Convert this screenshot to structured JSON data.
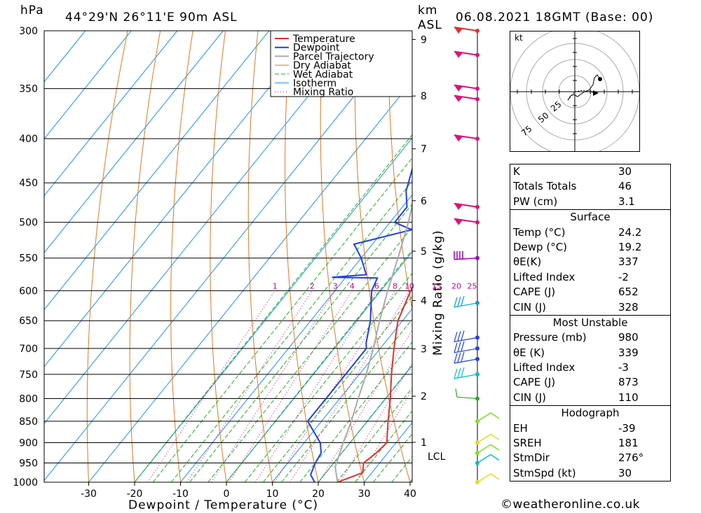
{
  "header": {
    "unit_left": "hPa",
    "location": "44°29'N  26°11'E  90m  ASL",
    "unit_right_1": "km",
    "unit_right_2": "ASL",
    "datetime": "06.08.2021  18GMT  (Base: 00)"
  },
  "chart_data": {
    "type": "line",
    "xlabel": "Dewpoint / Temperature (°C)",
    "ylabel_right": "Mixing Ratio (g/kg)",
    "x_ticks": [
      -30,
      -20,
      -10,
      0,
      10,
      20,
      30,
      40
    ],
    "pressure_ticks": [
      300,
      350,
      400,
      450,
      500,
      550,
      600,
      650,
      700,
      750,
      800,
      850,
      900,
      950,
      1000
    ],
    "height_ticks_km": [
      "9",
      "8",
      "7",
      "6",
      "5",
      "4",
      "3",
      "2",
      "1"
    ],
    "lcl_label": "LCL",
    "mixing_ratio_labels": [
      "1",
      "2",
      "3",
      "4",
      "6",
      "8",
      "10",
      "15",
      "20",
      "25"
    ],
    "legend": [
      "Temperature",
      "Dewpoint",
      "Parcel Trajectory",
      "Dry Adiabat",
      "Wet Adiabat",
      "Isotherm",
      "Mixing Ratio"
    ],
    "colors": {
      "temperature": "#e03030",
      "dewpoint": "#2040e0",
      "parcel": "#aaaaaa",
      "dry_adiabat": "#e07820",
      "wet_adiabat": "#20b020",
      "isotherm": "#1e90ff",
      "mixing_ratio": "#cc0099"
    },
    "series": [
      {
        "name": "Temperature",
        "points": [
          [
            1000,
            24.2
          ],
          [
            975,
            28
          ],
          [
            950,
            26.5
          ],
          [
            925,
            27.5
          ],
          [
            900,
            28
          ],
          [
            850,
            24.5
          ],
          [
            800,
            21
          ],
          [
            750,
            17
          ],
          [
            700,
            13
          ],
          [
            650,
            9
          ],
          [
            600,
            6.5
          ],
          [
            580,
            5.5
          ],
          [
            560,
            5
          ],
          [
            540,
            4
          ],
          [
            520,
            2.5
          ],
          [
            500,
            0.5
          ],
          [
            480,
            -1
          ],
          [
            460,
            -3
          ],
          [
            440,
            -6
          ],
          [
            420,
            -9.5
          ],
          [
            400,
            -12.5
          ],
          [
            350,
            -21
          ],
          [
            300,
            -31
          ]
        ]
      },
      {
        "name": "Dewpoint",
        "points": [
          [
            1000,
            19.2
          ],
          [
            980,
            17
          ],
          [
            950,
            16
          ],
          [
            925,
            15.5
          ],
          [
            900,
            13.5
          ],
          [
            850,
            7
          ],
          [
            800,
            7
          ],
          [
            750,
            7
          ],
          [
            700,
            7
          ],
          [
            690,
            6
          ],
          [
            650,
            3
          ],
          [
            600,
            -2
          ],
          [
            580,
            -3
          ],
          [
            579,
            -13
          ],
          [
            575,
            -6
          ],
          [
            550,
            -10
          ],
          [
            530,
            -14
          ],
          [
            510,
            -4
          ],
          [
            500,
            -9
          ],
          [
            480,
            -9
          ],
          [
            460,
            -12
          ],
          [
            400,
            -18
          ],
          [
            370,
            -21.5
          ],
          [
            350,
            -25
          ],
          [
            320,
            -28
          ],
          [
            310,
            -30
          ],
          [
            300,
            -28
          ]
        ]
      },
      {
        "name": "Parcel Trajectory",
        "points": [
          [
            1000,
            24.2
          ],
          [
            960,
            21
          ],
          [
            900,
            18.5
          ],
          [
            850,
            16.5
          ],
          [
            800,
            14
          ],
          [
            750,
            11.5
          ],
          [
            700,
            8.5
          ],
          [
            650,
            5
          ],
          [
            600,
            1.5
          ],
          [
            550,
            -2
          ],
          [
            500,
            -6
          ],
          [
            450,
            -11
          ],
          [
            400,
            -17
          ],
          [
            350,
            -24.5
          ],
          [
            300,
            -34
          ]
        ]
      }
    ],
    "wind_barbs_pressure": [
      300,
      320,
      350,
      360,
      400,
      480,
      500,
      550,
      620,
      680,
      700,
      720,
      750,
      800,
      850,
      900,
      925,
      950,
      1000
    ]
  },
  "hodograph": {
    "unit": "kt",
    "ring_labels": [
      "25",
      "50",
      "75"
    ]
  },
  "indices": [
    {
      "label": "K",
      "value": "30"
    },
    {
      "label": "Totals Totals",
      "value": "46"
    },
    {
      "label": "PW (cm)",
      "value": "3.1"
    }
  ],
  "surface": {
    "title": "Surface",
    "rows": [
      {
        "label": "Temp (°C)",
        "value": "24.2"
      },
      {
        "label": "Dewp (°C)",
        "value": "19.2"
      },
      {
        "label": "θE(K)",
        "value": "337"
      },
      {
        "label": "Lifted Index",
        "value": "-2"
      },
      {
        "label": "CAPE (J)",
        "value": "652"
      },
      {
        "label": "CIN (J)",
        "value": "328"
      }
    ]
  },
  "most_unstable": {
    "title": "Most Unstable",
    "rows": [
      {
        "label": "Pressure (mb)",
        "value": "980"
      },
      {
        "label": "θE (K)",
        "value": "339"
      },
      {
        "label": "Lifted Index",
        "value": "-3"
      },
      {
        "label": "CAPE (J)",
        "value": "873"
      },
      {
        "label": "CIN (J)",
        "value": "110"
      }
    ]
  },
  "hodograph_stats": {
    "title": "Hodograph",
    "rows": [
      {
        "label": "EH",
        "value": "-39"
      },
      {
        "label": "SREH",
        "value": "181"
      },
      {
        "label": "StmDir",
        "value": "276°"
      },
      {
        "label": "StmSpd (kt)",
        "value": "30"
      }
    ]
  },
  "credit": "©weatheronline.co.uk"
}
